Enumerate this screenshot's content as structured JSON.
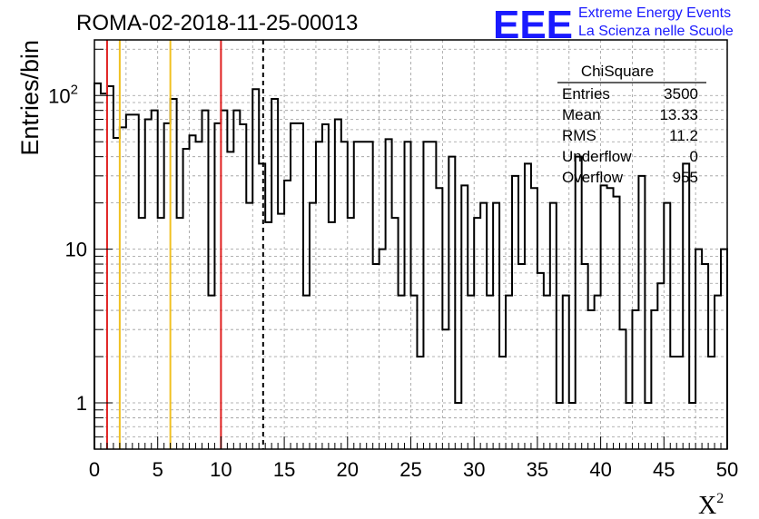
{
  "chart_data": {
    "type": "histogram",
    "title": "ROMA-02-2018-11-25-00013",
    "xlabel": "X",
    "xlabel_superscript": "2",
    "ylabel": "Entries/bin",
    "xlim": [
      0,
      50
    ],
    "ylim": [
      0.5,
      230
    ],
    "y_scale": "log",
    "grid": true,
    "bin_width": 0.5,
    "x_ticks": [
      "0",
      "5",
      "10",
      "15",
      "20",
      "25",
      "30",
      "35",
      "40",
      "45",
      "50"
    ],
    "y_ticks": [
      {
        "label": "1",
        "value": 1
      },
      {
        "label": "10",
        "value": 10
      },
      {
        "label": "10",
        "sup": "2",
        "value": 100
      }
    ],
    "values": [
      120,
      103,
      115,
      53,
      62,
      75,
      75,
      16,
      70,
      80,
      16,
      66,
      95,
      16,
      45,
      55,
      50,
      80,
      5,
      66,
      80,
      43,
      80,
      65,
      20,
      110,
      36,
      15,
      95,
      17,
      28,
      66,
      66,
      5,
      20,
      50,
      65,
      15,
      70,
      50,
      16,
      50,
      50,
      50,
      8,
      10,
      52,
      16,
      5,
      50,
      5,
      2,
      50,
      50,
      25,
      3,
      40,
      1,
      26,
      5,
      16,
      20,
      5,
      20,
      2,
      5,
      30,
      8,
      36,
      25,
      7,
      5,
      20,
      1,
      5,
      1,
      40,
      8,
      4,
      5,
      26,
      25,
      22,
      3,
      1,
      4,
      30,
      1,
      4,
      6,
      20,
      2,
      2,
      36,
      1,
      10,
      8,
      2,
      5,
      10
    ],
    "vertical_lines": [
      {
        "x": 1,
        "color": "#e02020",
        "style": "solid"
      },
      {
        "x": 2,
        "color": "#f0c020",
        "style": "solid"
      },
      {
        "x": 6,
        "color": "#f0c020",
        "style": "solid"
      },
      {
        "x": 10,
        "color": "#e02020",
        "style": "solid"
      },
      {
        "x": 13.33,
        "color": "#000000",
        "style": "dashed"
      }
    ],
    "stats": {
      "title": "ChiSquare",
      "rows": [
        {
          "label": "Entries",
          "value": "3500"
        },
        {
          "label": "Mean",
          "value": "13.33"
        },
        {
          "label": "RMS",
          "value": "11.2"
        },
        {
          "label": "Underflow",
          "value": "0"
        },
        {
          "label": "Overflow",
          "value": "955"
        }
      ]
    }
  },
  "logo": {
    "letters": "EEE",
    "line1": "Extreme Energy Events",
    "line2": "La Scienza nelle Scuole",
    "color": "#1a1aff"
  }
}
